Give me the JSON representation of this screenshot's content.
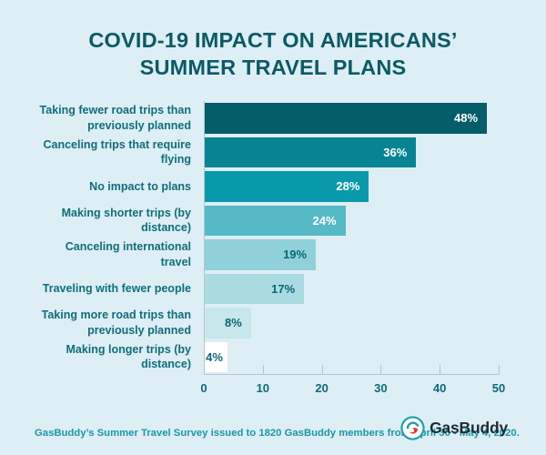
{
  "title": {
    "line1": "COVID-19 IMPACT ON AMERICANS’",
    "line2": "SUMMER TRAVEL PLANS"
  },
  "chart_data": {
    "type": "bar",
    "orientation": "horizontal",
    "title": "COVID-19 IMPACT ON AMERICANS’ SUMMER TRAVEL PLANS",
    "categories": [
      "Taking fewer road trips than previously planned",
      "Canceling trips that require flying",
      "No impact to plans",
      "Making shorter trips (by distance)",
      "Canceling international travel",
      "Traveling with fewer people",
      "Taking more road trips than previously planned",
      "Making longer trips (by distance)"
    ],
    "values": [
      48,
      36,
      28,
      24,
      19,
      17,
      8,
      4
    ],
    "value_labels": [
      "48%",
      "36%",
      "28%",
      "24%",
      "19%",
      "17%",
      "8%",
      "4%"
    ],
    "value_label_style": [
      "light",
      "light",
      "light",
      "light",
      "dark",
      "dark",
      "dark",
      "dark"
    ],
    "bar_colors": [
      "#045d68",
      "#068493",
      "#089aab",
      "#55b9c6",
      "#90d0d9",
      "#a9dbe1",
      "#c7e7ec",
      "#ffffff"
    ],
    "xlabel": "",
    "ylabel": "",
    "xlim": [
      0,
      50
    ],
    "x_ticks": [
      0,
      10,
      20,
      30,
      40,
      50
    ],
    "grid": false,
    "legend": "none"
  },
  "footer": {
    "source": "GasBuddy’s Summer Travel Survey issued to 1820 GasBuddy members from April 30 - May 4, 2020.",
    "logo_text": "GasBuddy"
  },
  "colors": {
    "background": "#ddeef4",
    "title": "#0b5a66",
    "category_label": "#106e7c",
    "axis_line": "#b3c6ce",
    "axis_label": "#0d6b77",
    "value_label_light": "#ffffff",
    "value_label_dark": "#0b6873",
    "footer_text": "#1b97a6",
    "logo_text": "#1d2c38",
    "logo_teal": "#1e9eae",
    "logo_red": "#e2392b"
  }
}
